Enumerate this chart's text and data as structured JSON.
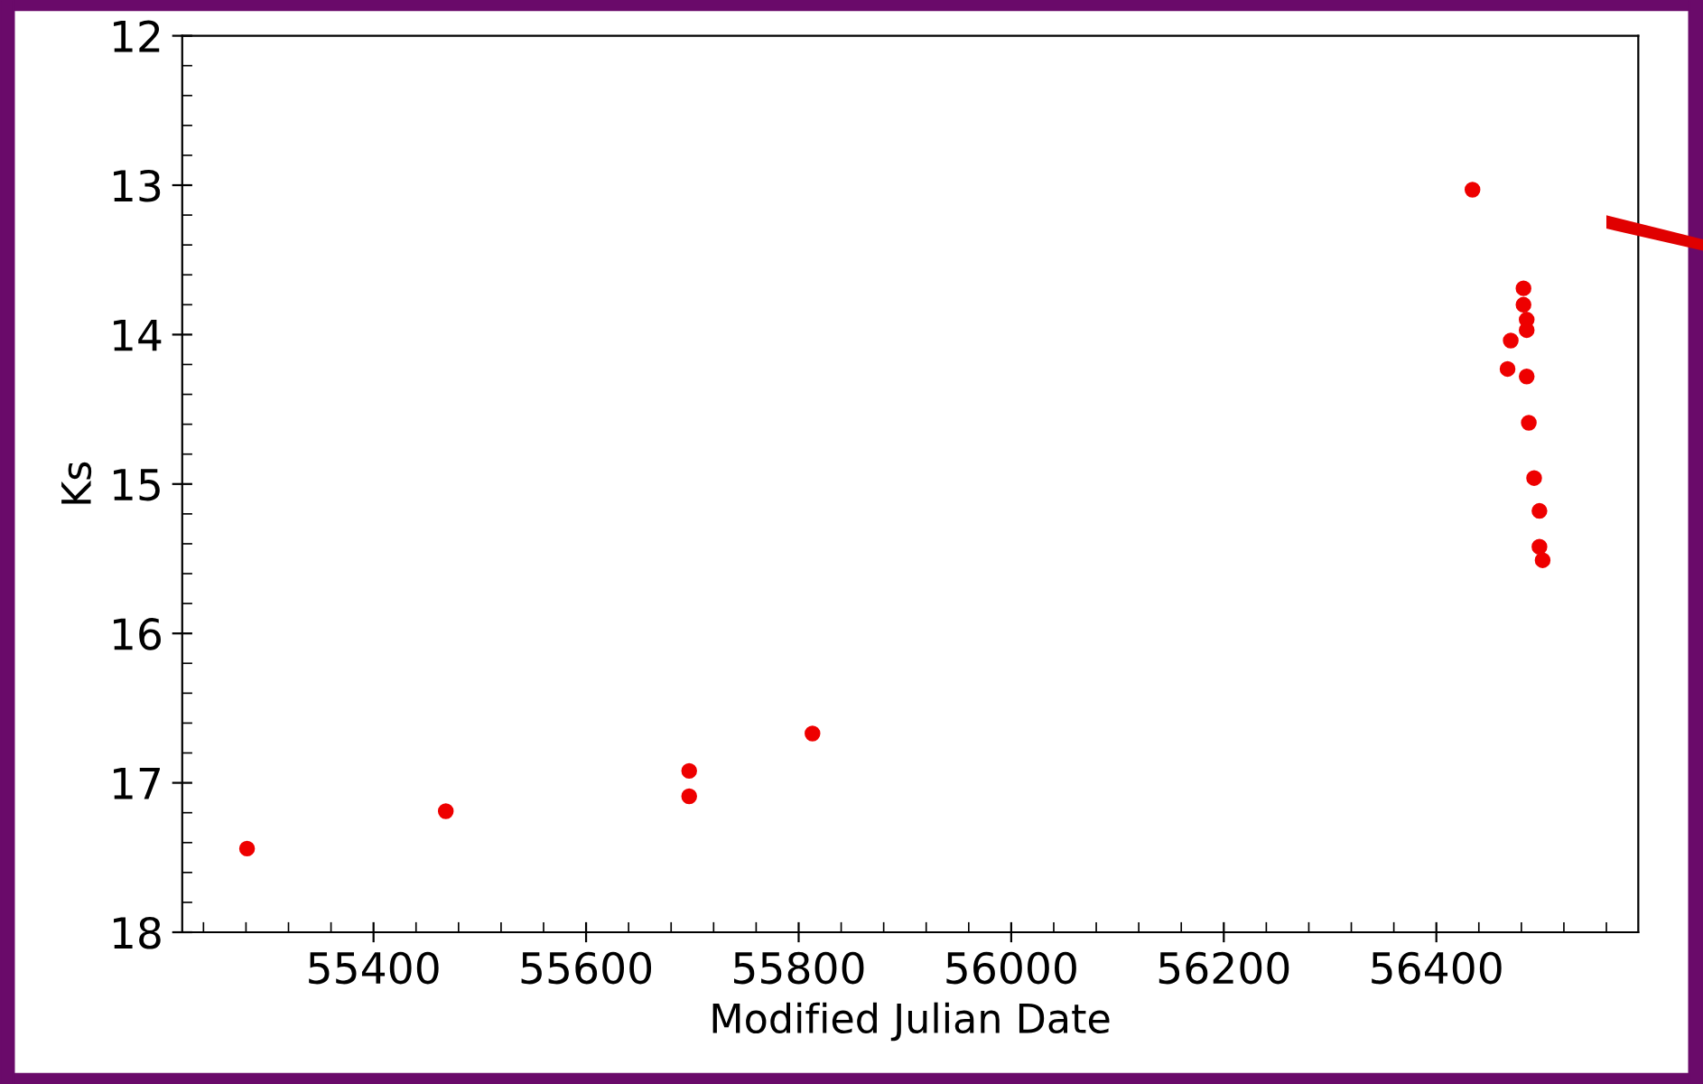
{
  "chart_data": {
    "type": "scatter",
    "xlabel": "Modified Julian Date",
    "ylabel": "Ks",
    "x": [
      55281,
      55468,
      55697,
      55697,
      55813,
      56434,
      56482,
      56482,
      56485,
      56485,
      56470,
      56467,
      56485,
      56487,
      56492,
      56497,
      56497,
      56500
    ],
    "series": [
      {
        "color": "#ee0000",
        "values": [
          17.44,
          17.19,
          16.92,
          17.09,
          16.67,
          13.03,
          13.69,
          13.8,
          13.9,
          13.97,
          14.04,
          14.23,
          14.28,
          14.59,
          14.96,
          15.18,
          15.42,
          15.51
        ]
      }
    ],
    "xlim": [
      55220,
      56590
    ],
    "xticks": [
      55400,
      55600,
      55800,
      56000,
      56200,
      56400
    ],
    "ylim": [
      18,
      12
    ],
    "yticks": [
      12,
      13,
      14,
      15,
      16,
      17,
      18
    ],
    "marker": "circle",
    "grid": false,
    "legend": false
  }
}
